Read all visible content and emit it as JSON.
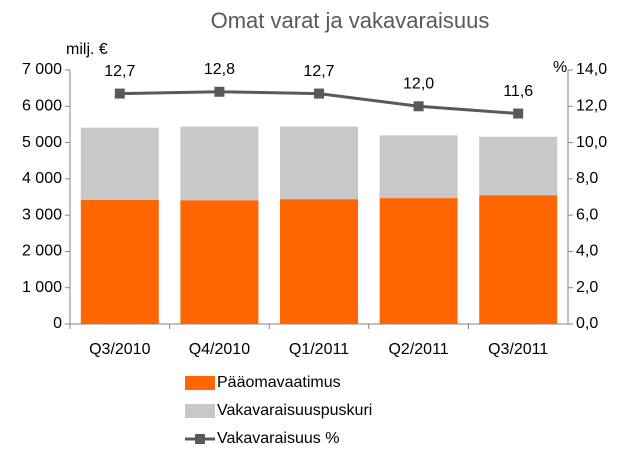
{
  "chart_data": {
    "type": "bar",
    "stacked": true,
    "title": "Omat varat ja vakavaraisuus",
    "y_label": "milj. €",
    "y2_label": "%",
    "categories": [
      "Q3/2010",
      "Q4/2010",
      "Q1/2011",
      "Q2/2011",
      "Q3/2011"
    ],
    "series": [
      {
        "name": "Pääomavaatimus",
        "type": "bar",
        "color": "#ff6600",
        "values": [
          3420,
          3410,
          3440,
          3470,
          3550
        ]
      },
      {
        "name": "Vakavaraisuuspuskuri",
        "type": "bar",
        "color": "#c8c8c8",
        "values": [
          1990,
          2030,
          2000,
          1730,
          1610
        ]
      },
      {
        "name": "Vakavaraisuus %",
        "type": "line",
        "axis": "y2",
        "color": "#595959",
        "values": [
          12.7,
          12.8,
          12.7,
          12.0,
          11.6
        ],
        "value_labels": [
          "12,7",
          "12,8",
          "12,7",
          "12,0",
          "11,6"
        ]
      }
    ],
    "ylim": [
      0,
      7000
    ],
    "yticks": [
      0,
      {
        "value": 1000,
        "label": "1 000"
      },
      {
        "value": 2000,
        "label": "2 000"
      },
      {
        "value": 3000,
        "label": "3 000"
      },
      {
        "value": 4000,
        "label": "4 000"
      },
      {
        "value": 5000,
        "label": "5 000"
      },
      {
        "value": 6000,
        "label": "6 000"
      },
      {
        "value": 7000,
        "label": "7 000"
      }
    ],
    "y2lim": [
      0,
      14
    ],
    "y2ticks": [
      {
        "value": 0,
        "label": "0,0"
      },
      {
        "value": 2,
        "label": "2,0"
      },
      {
        "value": 4,
        "label": "4,0"
      },
      {
        "value": 6,
        "label": "6,0"
      },
      {
        "value": 8,
        "label": "8,0"
      },
      {
        "value": 10,
        "label": "10,0"
      },
      {
        "value": 12,
        "label": "12,0"
      },
      {
        "value": 14,
        "label": "14,0"
      }
    ],
    "legend": "bottom",
    "grid": false
  }
}
